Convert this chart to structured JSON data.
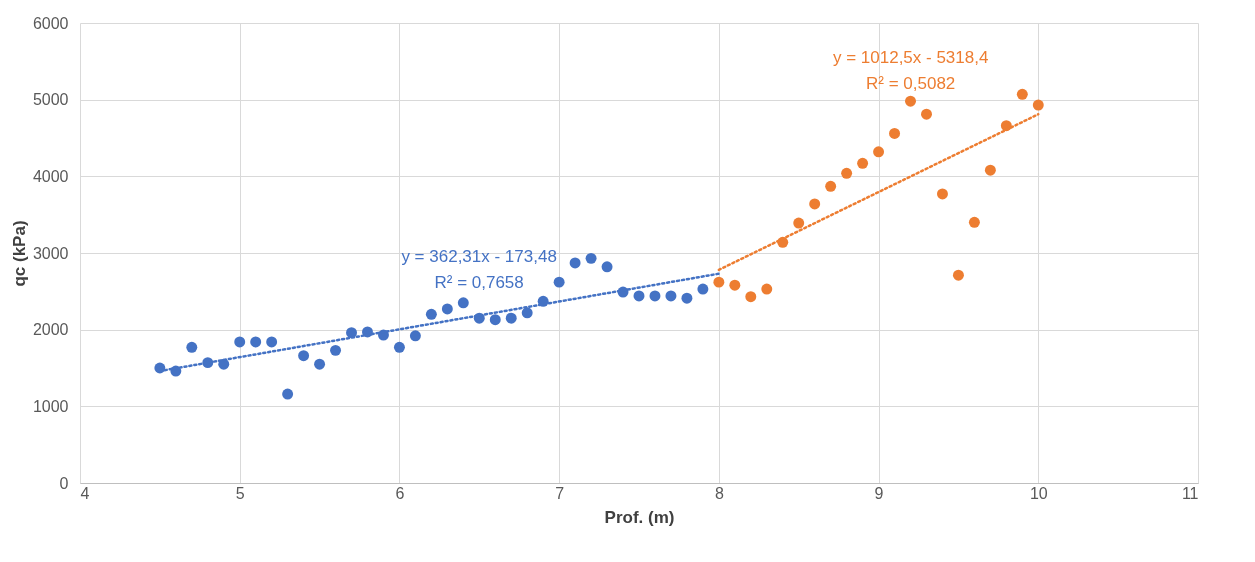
{
  "chart_data": {
    "type": "scatter",
    "xlabel": "Prof. (m)",
    "ylabel": "qc (kPa)",
    "xlim": [
      4,
      11
    ],
    "xticks": [
      4,
      5,
      6,
      7,
      8,
      9,
      10,
      11
    ],
    "ylim": [
      0,
      6000
    ],
    "yticks": [
      0,
      1000,
      2000,
      3000,
      4000,
      5000,
      6000
    ],
    "grid": true,
    "marker": "circle",
    "series": [
      {
        "color": "#4472c4",
        "x": [
          4.5,
          4.6,
          4.7,
          4.8,
          4.9,
          5.0,
          5.1,
          5.2,
          5.3,
          5.4,
          5.5,
          5.6,
          5.7,
          5.8,
          5.9,
          6.0,
          6.1,
          6.2,
          6.3,
          6.4,
          6.5,
          6.6,
          6.7,
          6.8,
          6.9,
          7.0,
          7.1,
          7.2,
          7.3,
          7.4,
          7.5,
          7.6,
          7.7,
          7.8,
          7.9
        ],
        "values": [
          1500,
          1460,
          1770,
          1570,
          1550,
          1840,
          1840,
          1840,
          1160,
          1660,
          1550,
          1730,
          1960,
          1970,
          1930,
          1770,
          1920,
          2200,
          2270,
          2350,
          2150,
          2130,
          2150,
          2220,
          2370,
          2620,
          2870,
          2930,
          2820,
          2490,
          2440,
          2440,
          2440,
          2410,
          2530
        ]
      },
      {
        "color": "#ed7d31",
        "x": [
          8.0,
          8.1,
          8.2,
          8.3,
          8.4,
          8.5,
          8.6,
          8.7,
          8.8,
          8.9,
          9.0,
          9.1,
          9.2,
          9.3,
          9.4,
          9.5,
          9.6,
          9.7,
          9.8,
          9.9,
          10.0
        ],
        "values": [
          2620,
          2580,
          2430,
          2530,
          3140,
          3390,
          3640,
          3870,
          4040,
          4170,
          4320,
          4560,
          4980,
          4810,
          3770,
          2710,
          3400,
          4080,
          4660,
          5070,
          4930
        ]
      },
      {
        "type": "line",
        "marker": "none",
        "line_style": "dotted",
        "color": "#4472c4",
        "x": [
          4.5,
          8.0
        ],
        "values": [
          1460,
          2730
        ]
      },
      {
        "type": "line",
        "marker": "none",
        "line_style": "dotted",
        "color": "#ed7d31",
        "x": [
          8.0,
          10.0
        ],
        "values": [
          2780,
          4810
        ]
      }
    ],
    "annotations": [
      "y = 362,31x - 173,48",
      "R² = 0,7658",
      "y = 1012,5x - 5318,4",
      "R² = 0,5082"
    ]
  }
}
